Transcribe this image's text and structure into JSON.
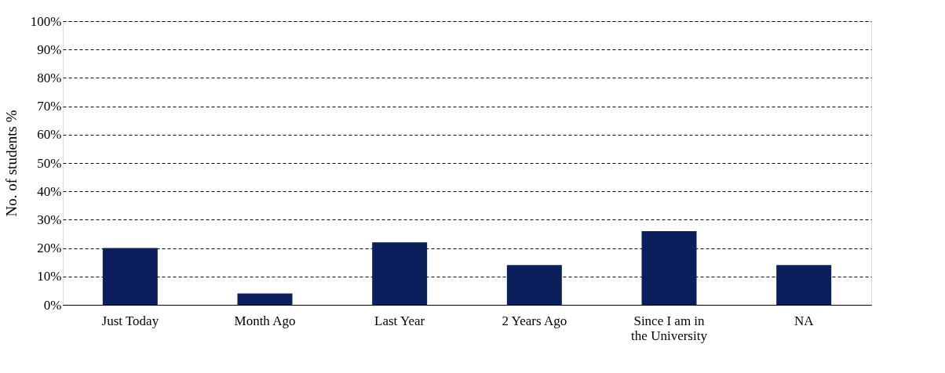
{
  "chart_data": {
    "type": "bar",
    "ylabel": "No. of students %",
    "categories": [
      "Just Today",
      "Month Ago",
      "Last Year",
      "2 Years Ago",
      "Since I am in the University",
      "NA"
    ],
    "values": [
      20,
      4,
      22,
      14,
      26,
      14
    ],
    "color": "#0a1f5c",
    "ylim": [
      0,
      100
    ],
    "yticks": [
      {
        "value": 0,
        "label": "0%"
      },
      {
        "value": 10,
        "label": "10%"
      },
      {
        "value": 20,
        "label": "20%"
      },
      {
        "value": 30,
        "label": "30%"
      },
      {
        "value": 40,
        "label": "40%"
      },
      {
        "value": 50,
        "label": "50%"
      },
      {
        "value": 60,
        "label": "60%"
      },
      {
        "value": 70,
        "label": "70%"
      },
      {
        "value": 80,
        "label": "80%"
      },
      {
        "value": 90,
        "label": "90%"
      },
      {
        "value": 100,
        "label": "100%"
      }
    ],
    "grid": "y",
    "line_style": "dashed"
  }
}
